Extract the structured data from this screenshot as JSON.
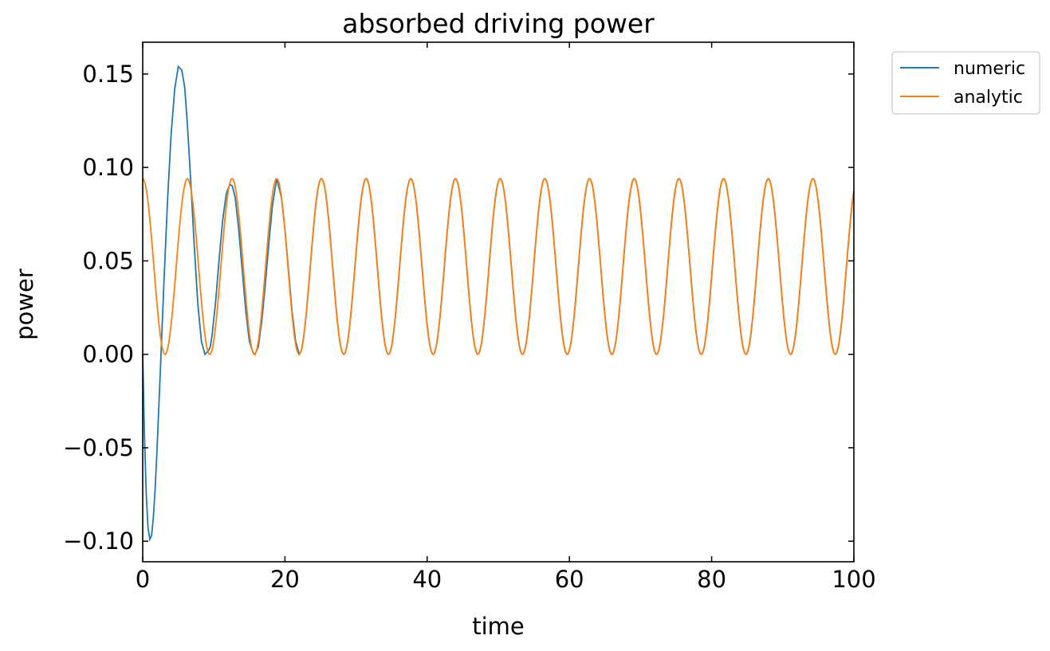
{
  "chart_data": {
    "type": "line",
    "title": "absorbed driving power",
    "xlabel": "time",
    "ylabel": "power",
    "xlim": [
      0,
      100
    ],
    "ylim": [
      -0.111,
      0.167
    ],
    "xticks": [
      0,
      20,
      40,
      60,
      80,
      100
    ],
    "xtick_labels": [
      "0",
      "20",
      "40",
      "60",
      "80",
      "100"
    ],
    "yticks": [
      -0.1,
      -0.05,
      0.0,
      0.05,
      0.1,
      0.15
    ],
    "ytick_labels": [
      "−0.10",
      "−0.05",
      "0.00",
      "0.05",
      "0.10",
      "0.15"
    ],
    "grid": false,
    "legend_position": "outside upper right",
    "series": [
      {
        "name": "numeric",
        "color": "#1f77b4",
        "x": [
          0,
          0.25,
          0.5,
          0.75,
          1.0,
          1.25,
          1.5,
          1.75,
          2.0,
          2.5,
          3.0,
          3.5,
          4.0,
          4.5,
          5.0,
          5.5,
          5.9,
          6.25,
          6.75,
          7.25,
          7.75,
          8.25,
          8.75,
          9.25,
          9.5,
          9.75,
          10.25,
          10.75,
          11.25,
          11.75,
          12.25,
          12.6,
          13.0,
          13.5,
          14.0,
          14.5,
          15.0,
          15.5,
          15.8,
          16.25,
          16.75,
          17.25,
          17.75,
          18.25,
          18.85,
          19.5,
          20.0,
          20.5,
          21.0,
          21.5,
          22.0
        ],
        "y": [
          0.0,
          -0.044,
          -0.075,
          -0.093,
          -0.099,
          -0.097,
          -0.087,
          -0.072,
          -0.052,
          -0.007,
          0.04,
          0.083,
          0.118,
          0.142,
          0.154,
          0.152,
          0.143,
          0.125,
          0.093,
          0.058,
          0.027,
          0.007,
          0.0,
          0.002,
          0.004,
          0.01,
          0.028,
          0.051,
          0.072,
          0.086,
          0.091,
          0.09,
          0.084,
          0.067,
          0.045,
          0.023,
          0.007,
          0.001,
          0.0,
          0.004,
          0.018,
          0.038,
          0.06,
          0.08,
          0.094,
          0.084,
          0.067,
          0.045,
          0.023,
          0.007,
          0.0
        ],
        "note_periodic": ""
      },
      {
        "name": "analytic",
        "color": "#ff7f0e",
        "x": [
          0,
          100
        ],
        "y": [
          0.094,
          0.087
        ]
      }
    ],
    "steady_state": {
      "amplitude": 0.047,
      "offset": 0.047,
      "period": 6.2832
    }
  }
}
